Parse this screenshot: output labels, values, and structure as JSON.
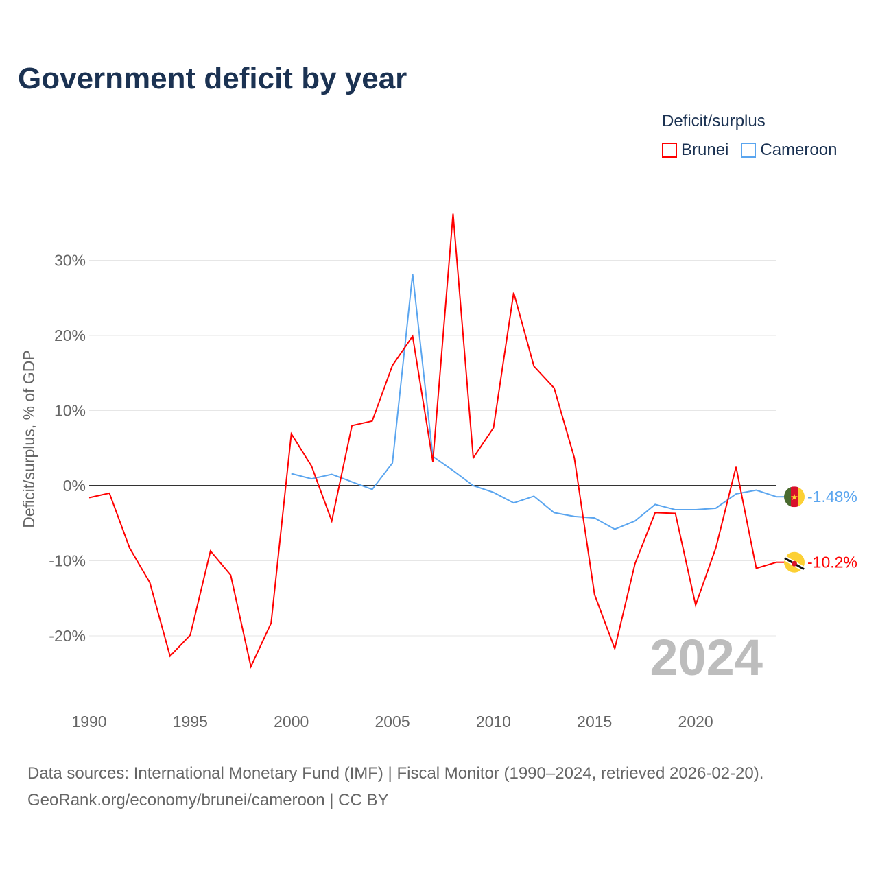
{
  "title": "Government deficit by year",
  "legend": {
    "title": "Deficit/surplus",
    "items": [
      {
        "name": "Brunei",
        "color": "#ff0000"
      },
      {
        "name": "Cameroon",
        "color": "#5aa5ef"
      }
    ]
  },
  "source": {
    "line1": "Data sources: International Monetary Fund (IMF) | Fiscal Monitor (1990–2024, retrieved 2026-02-20).",
    "line2": "GeoRank.org/economy/brunei/cameroon | CC BY"
  },
  "chart_data": {
    "type": "line",
    "title": "Government deficit by year",
    "ylabel": "Deficit/surplus, % of GDP",
    "xlabel": "",
    "year_label": "2024",
    "xlim": [
      1990,
      2024
    ],
    "ylim": [
      -27,
      37
    ],
    "xticks": [
      1990,
      1995,
      2000,
      2005,
      2010,
      2015,
      2020
    ],
    "xtick_labels": [
      "1990",
      "1995",
      "2000",
      "2005",
      "2010",
      "2015",
      "2020"
    ],
    "yticks": [
      -20,
      -10,
      0,
      10,
      20,
      30
    ],
    "ytick_labels": [
      "-20%",
      "-10%",
      "0%",
      "10%",
      "20%",
      "30%"
    ],
    "series": [
      {
        "name": "Brunei",
        "color": "#ff0000",
        "end_label": "-10.2%",
        "flag": "brunei-flag-icon",
        "x": [
          1990,
          1991,
          1992,
          1993,
          1994,
          1995,
          1996,
          1997,
          1998,
          1999,
          2000,
          2001,
          2002,
          2003,
          2004,
          2005,
          2006,
          2007,
          2008,
          2009,
          2010,
          2011,
          2012,
          2013,
          2014,
          2015,
          2016,
          2017,
          2018,
          2019,
          2020,
          2021,
          2022,
          2023,
          2024
        ],
        "values": [
          -1.6,
          -1.0,
          -8.3,
          -12.9,
          -22.7,
          -19.9,
          -8.7,
          -11.9,
          -24.1,
          -18.3,
          6.9,
          2.6,
          -4.7,
          8.0,
          8.6,
          16.0,
          19.9,
          3.2,
          36.2,
          3.7,
          7.7,
          25.7,
          15.9,
          13.0,
          3.7,
          -14.5,
          -21.7,
          -10.4,
          -3.6,
          -3.7,
          -15.9,
          -8.3,
          2.5,
          -11.0,
          -10.2
        ]
      },
      {
        "name": "Cameroon",
        "color": "#5aa5ef",
        "end_label": "-1.48%",
        "flag": "cameroon-flag-icon",
        "x": [
          2000,
          2001,
          2002,
          2003,
          2004,
          2005,
          2006,
          2007,
          2008,
          2009,
          2010,
          2011,
          2012,
          2013,
          2014,
          2015,
          2016,
          2017,
          2018,
          2019,
          2020,
          2021,
          2022,
          2023,
          2024
        ],
        "values": [
          1.6,
          0.9,
          1.5,
          0.5,
          -0.5,
          3.0,
          28.2,
          3.9,
          2.0,
          0.0,
          -0.9,
          -2.3,
          -1.4,
          -3.6,
          -4.1,
          -4.3,
          -5.8,
          -4.7,
          -2.5,
          -3.2,
          -3.2,
          -3.0,
          -1.1,
          -0.6,
          -1.48
        ]
      }
    ]
  }
}
